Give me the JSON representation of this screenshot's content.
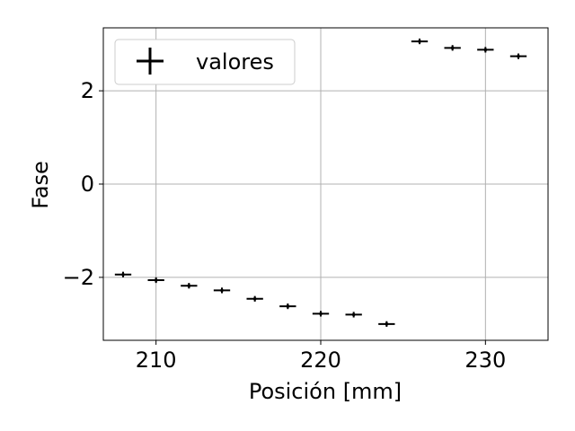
{
  "chart_data": {
    "type": "scatter",
    "title": "",
    "xlabel": "Posición [mm]",
    "ylabel": "Fase",
    "xlim": [
      206.8,
      233.8
    ],
    "ylim": [
      -3.35,
      3.35
    ],
    "xticks": [
      210,
      220,
      230
    ],
    "yticks": [
      -2,
      0,
      2
    ],
    "xtick_labels": [
      "210",
      "220",
      "230"
    ],
    "ytick_labels": [
      "−2",
      "0",
      "2"
    ],
    "grid": true,
    "legend": {
      "position": "top-left",
      "entries": [
        "valores"
      ]
    },
    "series": [
      {
        "name": "valores",
        "marker": "errorbar",
        "color": "#000000",
        "x": [
          208,
          210,
          212,
          214,
          216,
          218,
          220,
          222,
          224,
          226,
          228,
          230,
          232
        ],
        "y": [
          -1.94,
          -2.06,
          -2.18,
          -2.28,
          -2.46,
          -2.62,
          -2.78,
          -2.8,
          -3.0,
          3.06,
          2.92,
          2.88,
          2.74
        ],
        "xerr": 0.5,
        "yerr": 0.06
      }
    ]
  }
}
